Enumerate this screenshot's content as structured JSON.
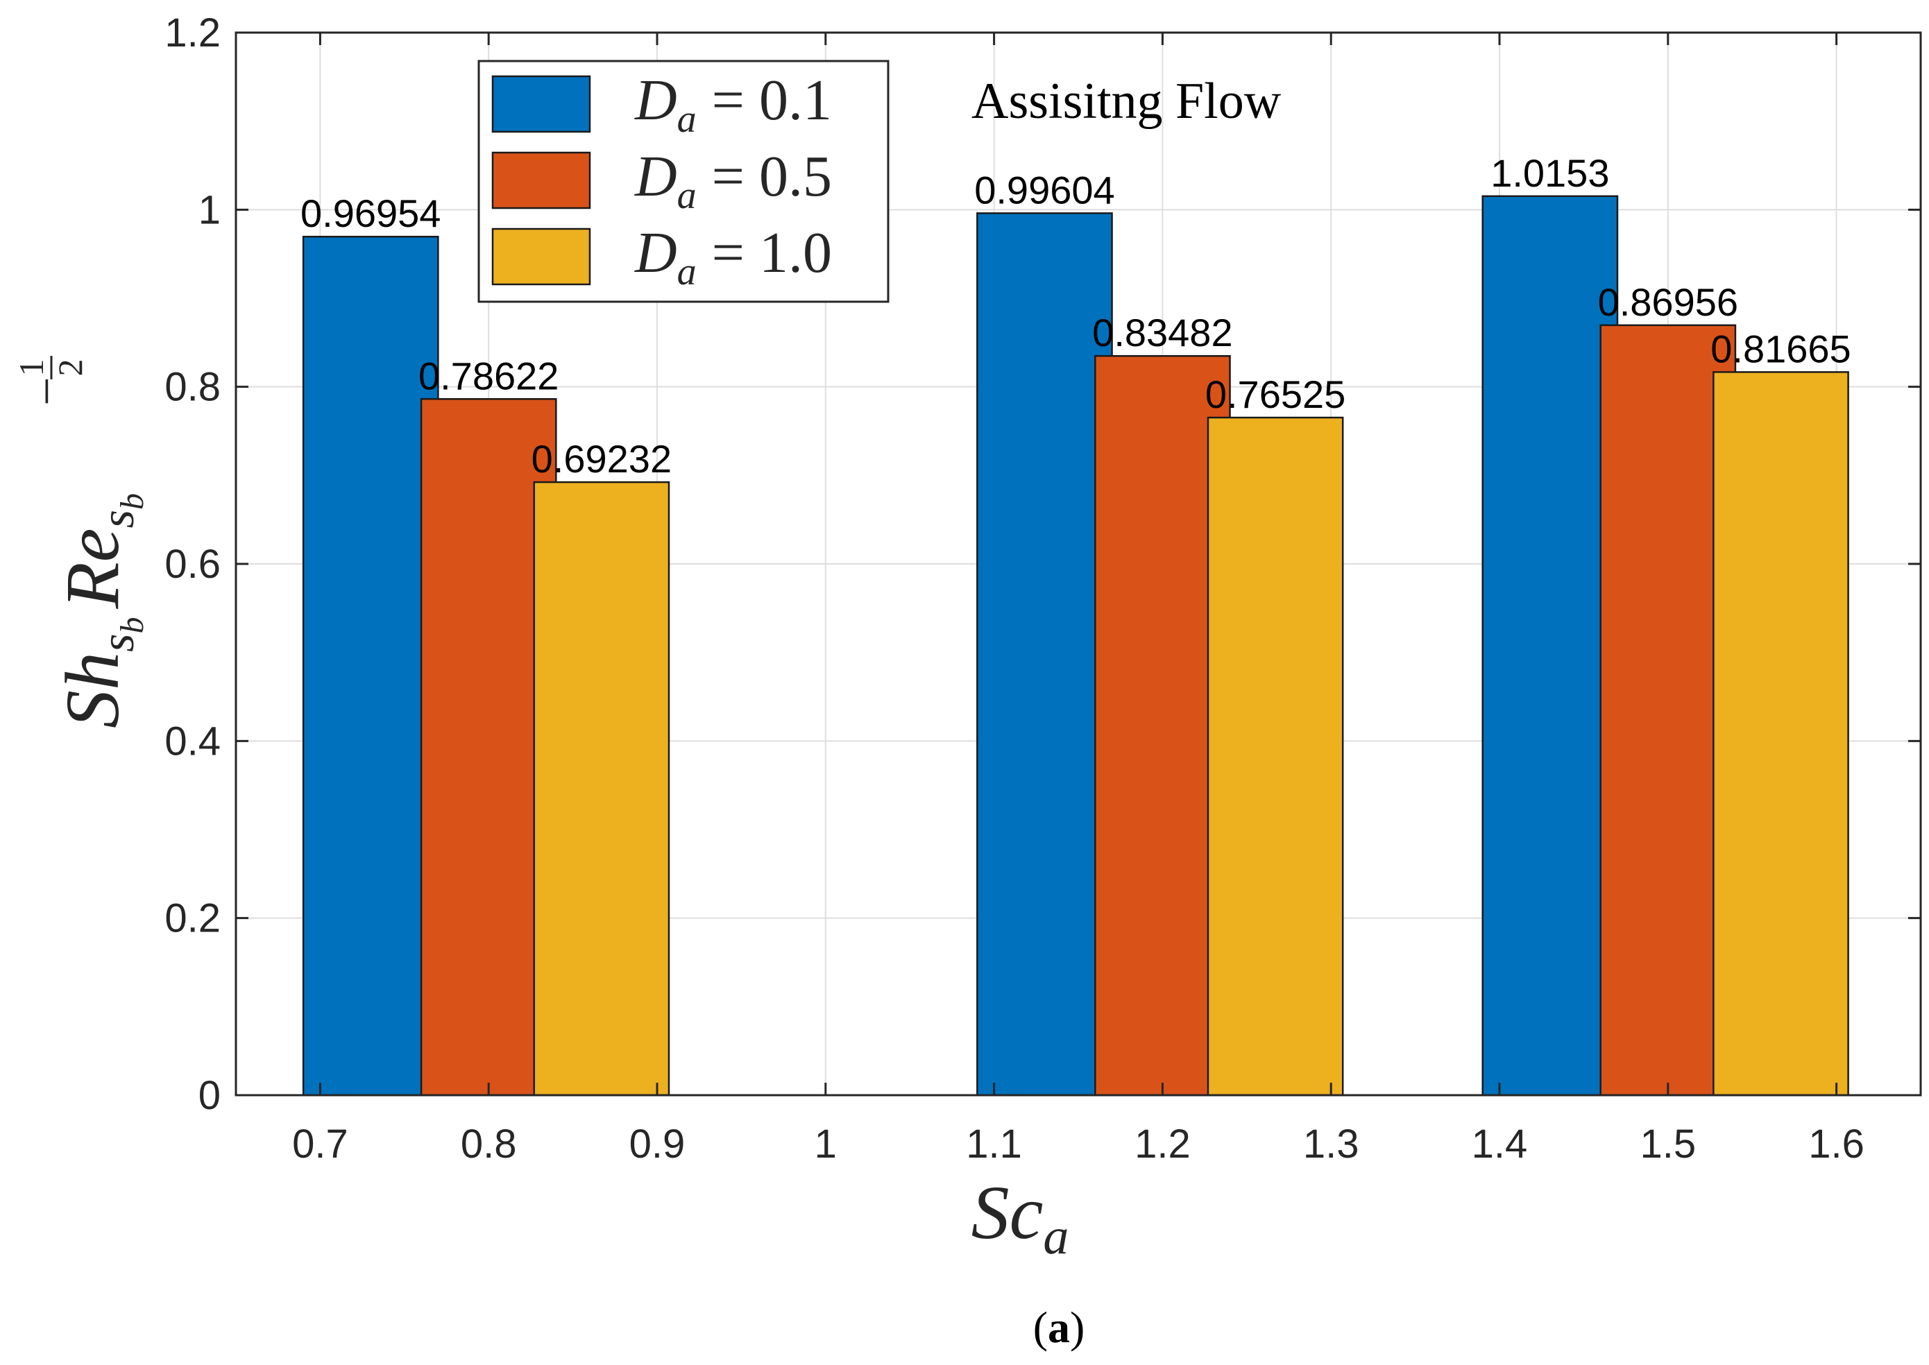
{
  "chart_data": {
    "type": "bar",
    "title": "",
    "annotation": "Assisitng Flow",
    "caption": {
      "open": "(",
      "letter": "a",
      "close": ")"
    },
    "xlabel": {
      "base": "Sc",
      "sub": "a"
    },
    "ylabel": {
      "base1": "Sh",
      "sub1": "s",
      "subsub1": "b",
      "base2": "Re",
      "sub2": "s",
      "subsub2": "b",
      "exp_sign": "−",
      "exp_num": "1",
      "exp_den": "2"
    },
    "xlim": [
      0.65,
      1.65
    ],
    "ylim": [
      0,
      1.2
    ],
    "xticks": [
      0.7,
      0.8,
      0.9,
      1,
      1.1,
      1.2,
      1.3,
      1.4,
      1.5,
      1.6
    ],
    "xtick_labels": [
      "0.7",
      "0.8",
      "0.9",
      "1",
      "1.1",
      "1.2",
      "1.3",
      "1.4",
      "1.5",
      "1.6"
    ],
    "yticks": [
      0,
      0.2,
      0.4,
      0.6,
      0.8,
      1,
      1.2
    ],
    "ytick_labels": [
      "0",
      "0.2",
      "0.4",
      "0.6",
      "0.8",
      "1",
      "1.2"
    ],
    "grid": true,
    "legend_position": "top-left",
    "bar_width": 0.08,
    "series": [
      {
        "name": "D_a = 0.1",
        "label_symbol": "D",
        "label_sub": "a",
        "label_value": "= 0.1",
        "color": "#0072BD",
        "x": [
          0.73,
          1.13,
          1.43
        ],
        "values": [
          0.96954,
          0.99604,
          1.0153
        ],
        "labels": [
          "0.96954",
          "0.99604",
          "1.0153"
        ]
      },
      {
        "name": "D_a = 0.5",
        "label_symbol": "D",
        "label_sub": "a",
        "label_value": "= 0.5",
        "color": "#D95319",
        "x": [
          0.8,
          1.2,
          1.5
        ],
        "values": [
          0.78622,
          0.83482,
          0.86956
        ],
        "labels": [
          "0.78622",
          "0.83482",
          "0.86956"
        ]
      },
      {
        "name": "D_a = 1.0",
        "label_symbol": "D",
        "label_sub": "a",
        "label_value": "= 1.0",
        "color": "#EDB120",
        "x": [
          0.867,
          1.267,
          1.567
        ],
        "values": [
          0.69232,
          0.76525,
          0.81665
        ],
        "labels": [
          "0.69232",
          "0.76525",
          "0.81665"
        ]
      }
    ]
  }
}
